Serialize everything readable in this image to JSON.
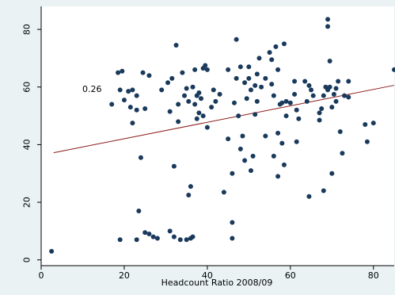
{
  "chart_data": {
    "type": "scatter",
    "xlabel": "Headcount Ratio 2008/09",
    "ylabel": "",
    "xlim": [
      0,
      85
    ],
    "ylim": [
      -2,
      88
    ],
    "x_ticks": [
      0,
      20,
      40,
      60,
      80
    ],
    "y_ticks": [
      0,
      20,
      40,
      60,
      80
    ],
    "grid": false,
    "annotation": "0.26",
    "fit_line": {
      "x": [
        3,
        85
      ],
      "y": [
        37.2,
        60.6
      ],
      "color": "#8b1a1a"
    },
    "point_color": "#1a3a5c",
    "points": [
      [
        2.5,
        3
      ],
      [
        17,
        54
      ],
      [
        18.5,
        65
      ],
      [
        19,
        59
      ],
      [
        19.5,
        65.5
      ],
      [
        20,
        55.5
      ],
      [
        19,
        7
      ],
      [
        21,
        58.5
      ],
      [
        21.5,
        53
      ],
      [
        22,
        59
      ],
      [
        22,
        47.5
      ],
      [
        23,
        57
      ],
      [
        23,
        52
      ],
      [
        23,
        7
      ],
      [
        23.5,
        17
      ],
      [
        24,
        35.5
      ],
      [
        24.5,
        65
      ],
      [
        25,
        52.5
      ],
      [
        25,
        9.5
      ],
      [
        26,
        9
      ],
      [
        26,
        64
      ],
      [
        27,
        8
      ],
      [
        28,
        7.5
      ],
      [
        29,
        59
      ],
      [
        30.5,
        61.5
      ],
      [
        31,
        51.5
      ],
      [
        31,
        10
      ],
      [
        31.5,
        63
      ],
      [
        32,
        8
      ],
      [
        32.5,
        74.5
      ],
      [
        32,
        32.5
      ],
      [
        33,
        48
      ],
      [
        33,
        54
      ],
      [
        33.5,
        7
      ],
      [
        34,
        65
      ],
      [
        34.5,
        57
      ],
      [
        35,
        59.5
      ],
      [
        35,
        7
      ],
      [
        35.5,
        22.5
      ],
      [
        35.5,
        55
      ],
      [
        36,
        7.5
      ],
      [
        36,
        25.5
      ],
      [
        36.5,
        8
      ],
      [
        36.5,
        60
      ],
      [
        37,
        66
      ],
      [
        37,
        54
      ],
      [
        37.5,
        49
      ],
      [
        37.5,
        57
      ],
      [
        38,
        51
      ],
      [
        38,
        58
      ],
      [
        38.5,
        56
      ],
      [
        39,
        66.5
      ],
      [
        39.5,
        67.5
      ],
      [
        39,
        50
      ],
      [
        40,
        66
      ],
      [
        40,
        46
      ],
      [
        41,
        53
      ],
      [
        41.5,
        59
      ],
      [
        42,
        55
      ],
      [
        43,
        57.5
      ],
      [
        44,
        23.5
      ],
      [
        45,
        66
      ],
      [
        45,
        42
      ],
      [
        46,
        13
      ],
      [
        46,
        7.5
      ],
      [
        46,
        30
      ],
      [
        46.5,
        54.5
      ],
      [
        47,
        63
      ],
      [
        47,
        76.5
      ],
      [
        47.5,
        50
      ],
      [
        48,
        67
      ],
      [
        48,
        38.5
      ],
      [
        48.5,
        43
      ],
      [
        49,
        61.5
      ],
      [
        49,
        34.5
      ],
      [
        49.5,
        56
      ],
      [
        50,
        63
      ],
      [
        50,
        67
      ],
      [
        50.5,
        59
      ],
      [
        50.5,
        31
      ],
      [
        51,
        36
      ],
      [
        51.5,
        60.5
      ],
      [
        51.5,
        50.5
      ],
      [
        52,
        55
      ],
      [
        52,
        64.5
      ],
      [
        52.5,
        70
      ],
      [
        53,
        60
      ],
      [
        54,
        63
      ],
      [
        54,
        43
      ],
      [
        55,
        72
      ],
      [
        55.5,
        61
      ],
      [
        55.5,
        69.5
      ],
      [
        56,
        57
      ],
      [
        56,
        36
      ],
      [
        56.5,
        74
      ],
      [
        57,
        44
      ],
      [
        57,
        66
      ],
      [
        57,
        29
      ],
      [
        57.5,
        54
      ],
      [
        58,
        54.5
      ],
      [
        58,
        40.5
      ],
      [
        58.5,
        75
      ],
      [
        58.5,
        33
      ],
      [
        59,
        55
      ],
      [
        59,
        50
      ],
      [
        60,
        54.5
      ],
      [
        61,
        62
      ],
      [
        61,
        57.5
      ],
      [
        61.5,
        52
      ],
      [
        61.5,
        41
      ],
      [
        62,
        49
      ],
      [
        63.5,
        62
      ],
      [
        64,
        55
      ],
      [
        64.5,
        22
      ],
      [
        64.5,
        60.5
      ],
      [
        65,
        59
      ],
      [
        65.5,
        57
      ],
      [
        67,
        48.5
      ],
      [
        67,
        51
      ],
      [
        67.5,
        52.5
      ],
      [
        68,
        57
      ],
      [
        68,
        24
      ],
      [
        68.5,
        60
      ],
      [
        69,
        83.5
      ],
      [
        69,
        81
      ],
      [
        69,
        59
      ],
      [
        69.5,
        69
      ],
      [
        69.5,
        60
      ],
      [
        70,
        30
      ],
      [
        70,
        53
      ],
      [
        70.5,
        57.5
      ],
      [
        71,
        55
      ],
      [
        71,
        59.5
      ],
      [
        71.5,
        62
      ],
      [
        72,
        44.5
      ],
      [
        72.5,
        37
      ],
      [
        73,
        57
      ],
      [
        74,
        62
      ],
      [
        74,
        56.5
      ],
      [
        78,
        47
      ],
      [
        78.5,
        41
      ],
      [
        80,
        47.5
      ],
      [
        85,
        66
      ]
    ]
  }
}
